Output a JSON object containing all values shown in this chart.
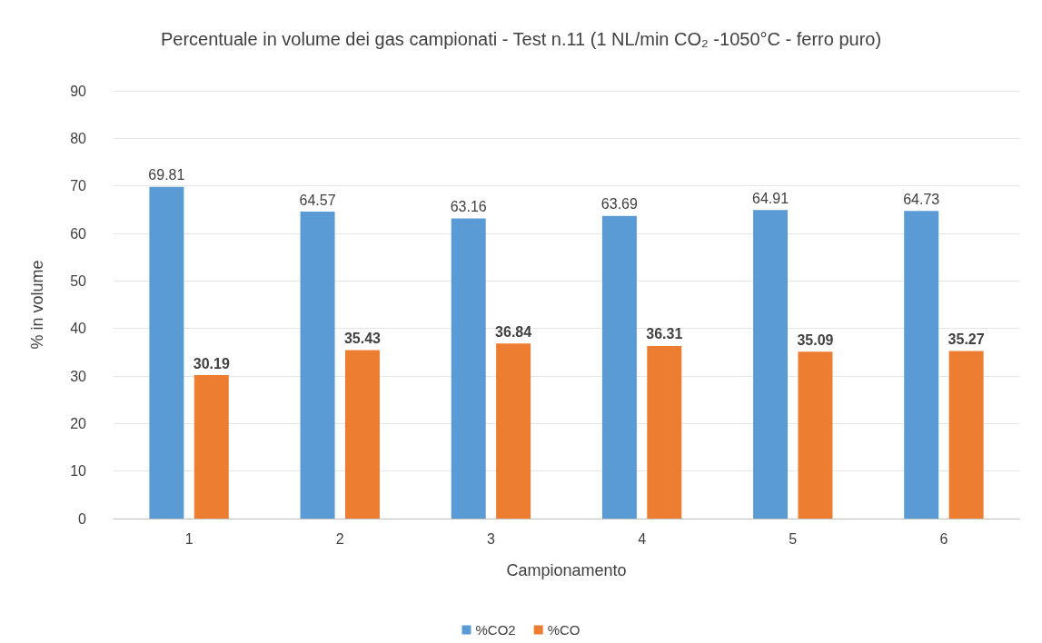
{
  "chart_data": {
    "type": "bar",
    "title": "Percentuale in volume dei gas campionati - Test n.11 (1 NL/min CO₂ -1050°C - ferro puro)",
    "xlabel": "Campionamento",
    "ylabel": "% in volume",
    "categories": [
      "1",
      "2",
      "3",
      "4",
      "5",
      "6"
    ],
    "series": [
      {
        "name": "%CO2",
        "color": "#5b9bd5",
        "values": [
          69.81,
          64.57,
          63.16,
          63.69,
          64.91,
          64.73
        ]
      },
      {
        "name": "%CO",
        "color": "#ed7d31",
        "values": [
          30.19,
          35.43,
          36.84,
          36.31,
          35.09,
          35.27
        ]
      }
    ],
    "ylim": [
      0,
      90
    ],
    "yticks": [
      0,
      10,
      20,
      30,
      40,
      50,
      60,
      70,
      80,
      90
    ],
    "grid": "y",
    "legend": "bottom",
    "data_labels": true
  }
}
